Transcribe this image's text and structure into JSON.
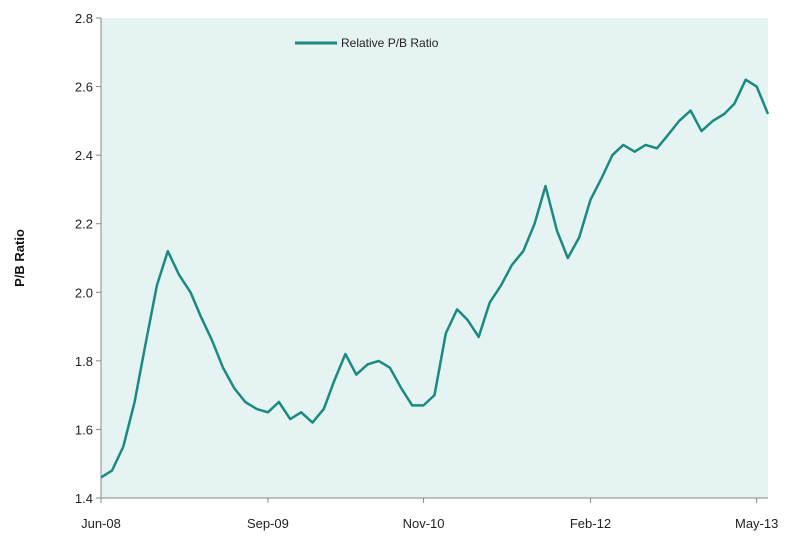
{
  "chart_data": {
    "type": "line",
    "title": "",
    "xlabel": "",
    "ylabel": "P/B Ratio",
    "ylim": [
      1.4,
      2.8
    ],
    "y_ticks": [
      "1.4",
      "1.6",
      "1.8",
      "2.0",
      "2.2",
      "2.4",
      "2.6",
      "2.8"
    ],
    "x_ticks": [
      "Jun-08",
      "Sep-09",
      "Nov-10",
      "Feb-12",
      "May-13"
    ],
    "xlim": [
      "2008-06-01",
      "2013-06-01"
    ],
    "grid": false,
    "legend_position": "top-center",
    "plot_background": "#e5f3f2",
    "series": [
      {
        "name": "Relative P/B Ratio",
        "color": "#1b8a80",
        "x": [
          "2008-06-01",
          "2008-07-01",
          "2008-08-01",
          "2008-09-01",
          "2008-10-01",
          "2008-11-01",
          "2008-12-01",
          "2009-01-01",
          "2009-02-01",
          "2009-03-01",
          "2009-04-01",
          "2009-05-01",
          "2009-06-01",
          "2009-07-01",
          "2009-08-01",
          "2009-09-01",
          "2009-10-01",
          "2009-11-01",
          "2009-12-01",
          "2010-01-01",
          "2010-02-01",
          "2010-03-01",
          "2010-04-01",
          "2010-05-01",
          "2010-06-01",
          "2010-07-01",
          "2010-08-01",
          "2010-09-01",
          "2010-10-01",
          "2010-11-01",
          "2010-12-01",
          "2011-01-01",
          "2011-02-01",
          "2011-03-01",
          "2011-04-01",
          "2011-05-01",
          "2011-06-01",
          "2011-07-01",
          "2011-08-01",
          "2011-09-01",
          "2011-10-01",
          "2011-11-01",
          "2011-12-01",
          "2012-01-01",
          "2012-02-01",
          "2012-03-01",
          "2012-04-01",
          "2012-05-01",
          "2012-06-01",
          "2012-07-01",
          "2012-08-01",
          "2012-09-01",
          "2012-10-01",
          "2012-11-01",
          "2012-12-01",
          "2013-01-01",
          "2013-02-01",
          "2013-03-01",
          "2013-04-01",
          "2013-05-01",
          "2013-06-01"
        ],
        "values": [
          1.46,
          1.48,
          1.55,
          1.68,
          1.85,
          2.02,
          2.12,
          2.05,
          2.0,
          1.93,
          1.86,
          1.78,
          1.72,
          1.68,
          1.66,
          1.65,
          1.68,
          1.63,
          1.65,
          1.62,
          1.66,
          1.74,
          1.82,
          1.76,
          1.79,
          1.8,
          1.78,
          1.72,
          1.67,
          1.67,
          1.7,
          1.88,
          1.95,
          1.92,
          1.87,
          1.97,
          2.02,
          2.08,
          2.12,
          2.2,
          2.31,
          2.18,
          2.1,
          2.16,
          2.27,
          2.33,
          2.4,
          2.43,
          2.41,
          2.43,
          2.42,
          2.46,
          2.5,
          2.53,
          2.47,
          2.5,
          2.52,
          2.55,
          2.62,
          2.6,
          2.52
        ]
      }
    ]
  }
}
